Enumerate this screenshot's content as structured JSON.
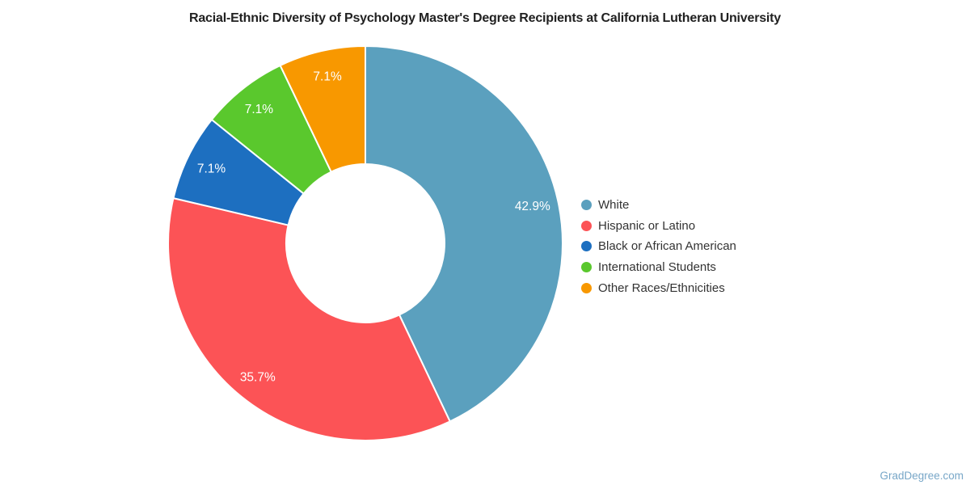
{
  "watermark": "GradDegree.com",
  "chart_data": {
    "type": "pie",
    "subtype": "donut",
    "title": "Racial-Ethnic Diversity of Psychology Master's Degree Recipients at California Lutheran University",
    "legend_position": "right",
    "legend_marker": "circle",
    "start_angle_deg": 0,
    "direction": "clockwise",
    "inner_radius_pct": 40,
    "slices": [
      {
        "label": "White",
        "value": 42.9,
        "display": "42.9%",
        "color": "#5ba0be"
      },
      {
        "label": "Hispanic or Latino",
        "value": 35.7,
        "display": "35.7%",
        "color": "#fc5356"
      },
      {
        "label": "Black or African American",
        "value": 7.1,
        "display": "7.1%",
        "color": "#1d6fc0"
      },
      {
        "label": "International Students",
        "value": 7.1,
        "display": "7.1%",
        "color": "#5ac82d"
      },
      {
        "label": "Other Races/Ethnicities",
        "value": 7.1,
        "display": "7.1%",
        "color": "#f89800"
      }
    ],
    "colors": {
      "slice_label": "#ffffff",
      "slice_border": "#ffffff",
      "title": "#212121",
      "legend_text": "#333333",
      "watermark": "#78a7c8"
    }
  }
}
